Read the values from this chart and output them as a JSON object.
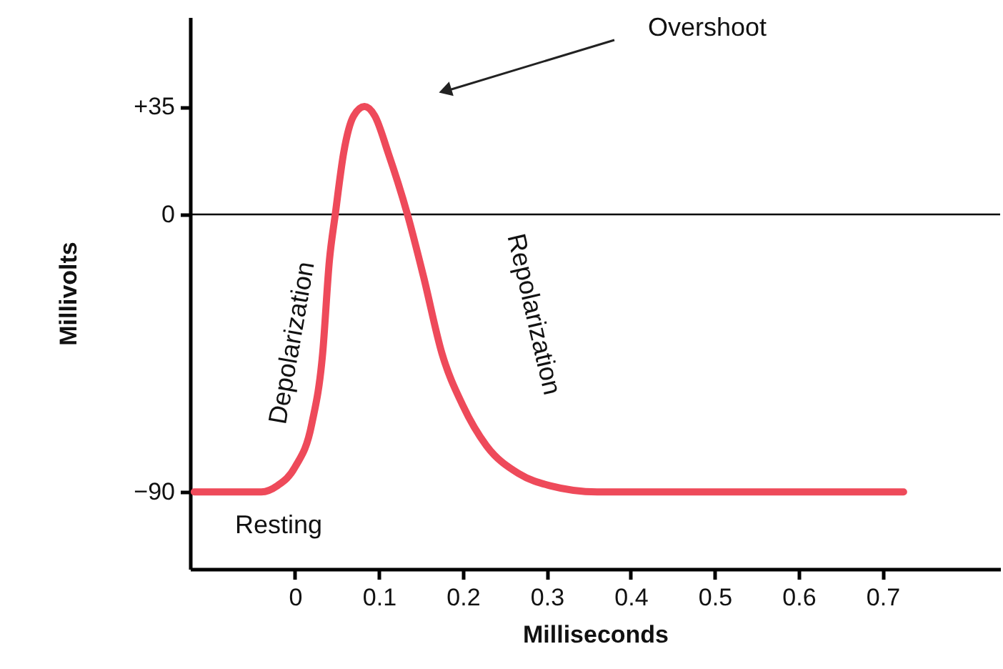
{
  "chart_data": {
    "type": "line",
    "xlabel": "Milliseconds",
    "ylabel": "Millivolts",
    "x": [
      -0.12,
      -0.04,
      -0.021,
      0,
      0.02,
      0.033,
      0.041,
      0.048,
      0.058,
      0.07,
      0.083,
      0.095,
      0.111,
      0.134,
      0.153,
      0.175,
      0.2,
      0.228,
      0.266,
      0.304,
      0.36,
      0.725
    ],
    "series": [
      {
        "color": "#ee4a5a",
        "values": [
          -90,
          -90,
          -88,
          -82,
          -68,
          -45,
          -15,
          0,
          20,
          32,
          35,
          32,
          20,
          0,
          -20,
          -45,
          -62,
          -75,
          -84,
          -88,
          -90,
          -90
        ]
      }
    ],
    "xlim": [
      -0.125,
      0.84
    ],
    "ylim": [
      -115,
      64
    ],
    "xticks": [
      0,
      0.1,
      0.2,
      0.3,
      0.4,
      0.5,
      0.6,
      0.7
    ],
    "yticks": [
      {
        "value": -90,
        "label": "−90"
      },
      0,
      {
        "value": 35,
        "label": "+35"
      }
    ],
    "ref_lines": [
      {
        "axis": "y",
        "value": 0,
        "color": "#000000"
      }
    ],
    "annotations": [
      "Overshoot",
      "Depolarization",
      "Repolarization",
      "Resting"
    ],
    "grid": false,
    "marker": "none",
    "line_style": "solid"
  }
}
